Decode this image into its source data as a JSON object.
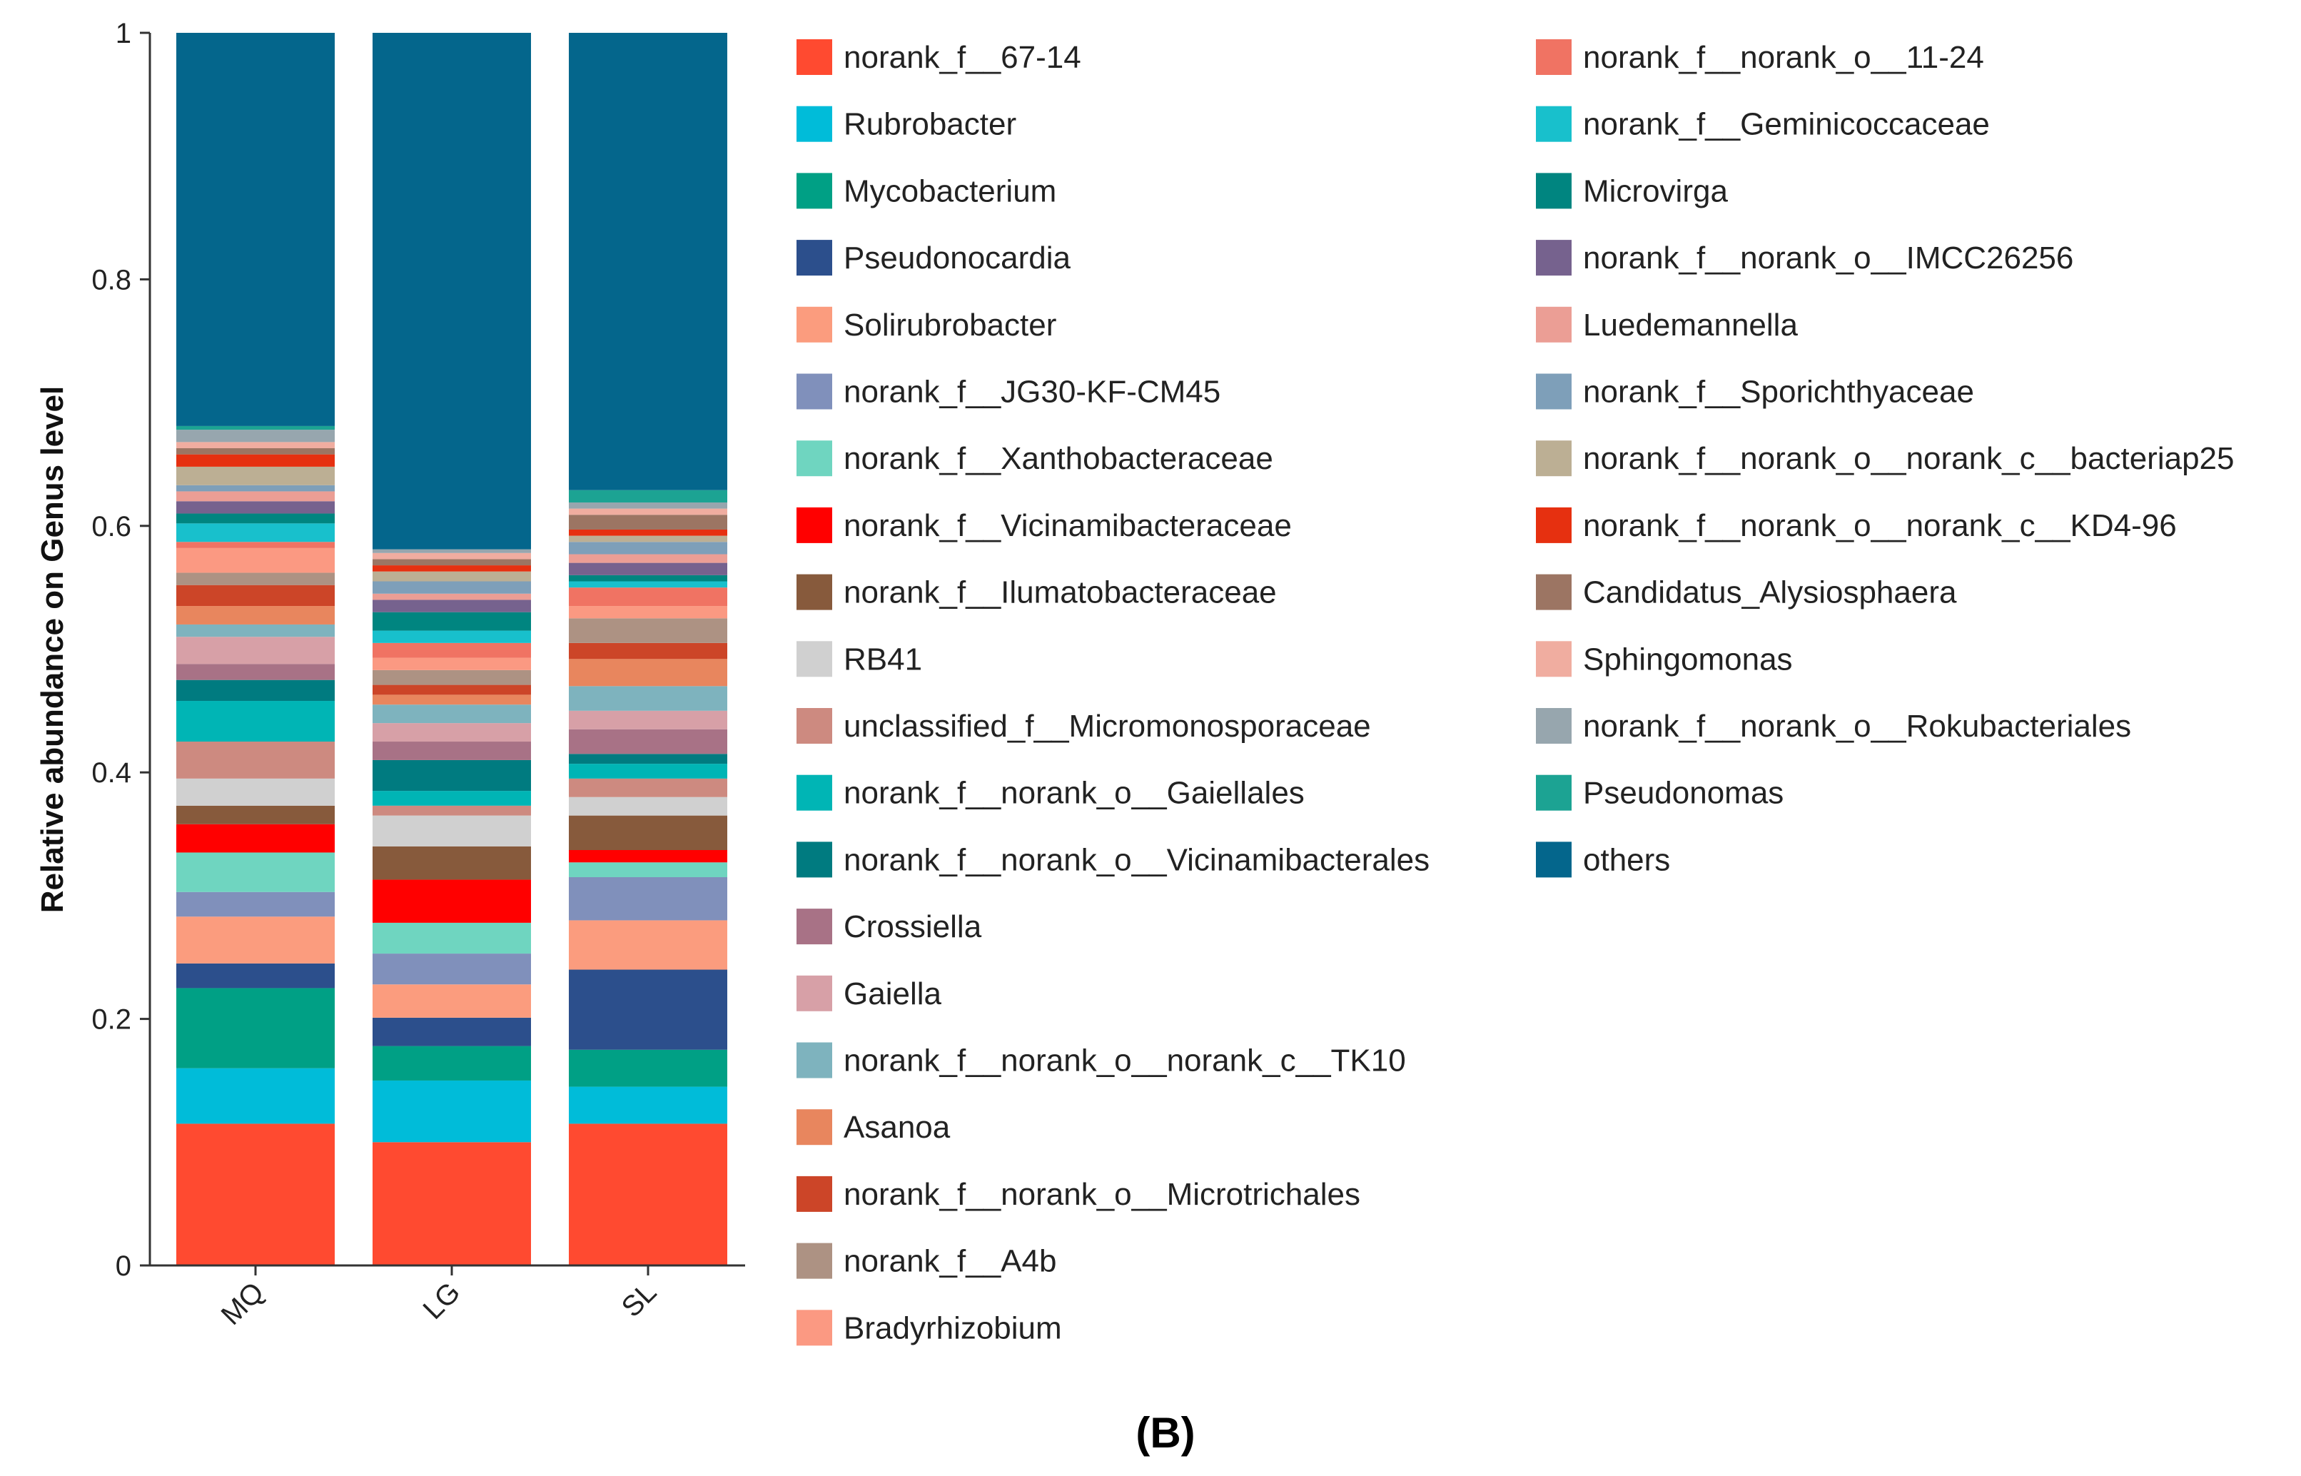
{
  "chart_data": {
    "type": "bar",
    "stacked": true,
    "panel_label": "(B)",
    "title": "",
    "xlabel": "",
    "ylabel": "Relative abundance on Genus level",
    "ylim": [
      0,
      1
    ],
    "yticks": [
      "0",
      "0.2",
      "0.4",
      "0.6",
      "0.8",
      "1"
    ],
    "categories": [
      "MQ",
      "LG",
      "SL"
    ],
    "series": [
      {
        "name": "norank_f__67-14",
        "color": "#FF4A30",
        "values": [
          0.115,
          0.1,
          0.115
        ]
      },
      {
        "name": "Rubrobacter",
        "color": "#00BCD9",
        "values": [
          0.045,
          0.05,
          0.03
        ]
      },
      {
        "name": "Mycobacterium",
        "color": "#00A085",
        "values": [
          0.065,
          0.028,
          0.03
        ]
      },
      {
        "name": "Pseudonocardia",
        "color": "#2C4F8C",
        "values": [
          0.02,
          0.023,
          0.065
        ]
      },
      {
        "name": "Solirubrobacter",
        "color": "#FB9C7E",
        "values": [
          0.038,
          0.027,
          0.04
        ]
      },
      {
        "name": "norank_f__JG30-KF-CM45",
        "color": "#8090BB",
        "values": [
          0.02,
          0.025,
          0.035
        ]
      },
      {
        "name": "norank_f__Xanthobacteraceae",
        "color": "#6FD5C0",
        "values": [
          0.032,
          0.025,
          0.012
        ]
      },
      {
        "name": "norank_f__Vicinamibacteraceae",
        "color": "#FF0000",
        "values": [
          0.023,
          0.035,
          0.01
        ]
      },
      {
        "name": "norank_f__Ilumatobacteraceae",
        "color": "#875A3C",
        "values": [
          0.015,
          0.027,
          0.028
        ]
      },
      {
        "name": "RB41",
        "color": "#D0D0D0",
        "values": [
          0.022,
          0.025,
          0.015
        ]
      },
      {
        "name": "unclassified_f__Micromonosporaceae",
        "color": "#CD8A80",
        "values": [
          0.03,
          0.008,
          0.015
        ]
      },
      {
        "name": "norank_f__norank_o__Gaiellales",
        "color": "#00B5B5",
        "values": [
          0.033,
          0.012,
          0.012
        ]
      },
      {
        "name": "norank_f__norank_o__Vicinamibacterales",
        "color": "#007B80",
        "values": [
          0.017,
          0.025,
          0.008
        ]
      },
      {
        "name": "Crossiella",
        "color": "#A87286",
        "values": [
          0.013,
          0.015,
          0.02
        ]
      },
      {
        "name": "Gaiella",
        "color": "#D7A0A7",
        "values": [
          0.022,
          0.015,
          0.015
        ]
      },
      {
        "name": "norank_f__norank_o__norank_c__TK10",
        "color": "#7EB3BE",
        "values": [
          0.01,
          0.015,
          0.02
        ]
      },
      {
        "name": "Asanoa",
        "color": "#E8865E",
        "values": [
          0.015,
          0.008,
          0.022
        ]
      },
      {
        "name": "norank_f__norank_o__Microtrichales",
        "color": "#CC4528",
        "values": [
          0.017,
          0.008,
          0.013
        ]
      },
      {
        "name": "norank_f__A4b",
        "color": "#AD9283",
        "values": [
          0.01,
          0.012,
          0.02
        ]
      },
      {
        "name": "Bradyrhizobium",
        "color": "#FB9982",
        "values": [
          0.02,
          0.01,
          0.01
        ]
      },
      {
        "name": "norank_f__norank_o__11-24",
        "color": "#F07363",
        "values": [
          0.005,
          0.012,
          0.015
        ]
      },
      {
        "name": "norank_f__Geminicoccaceae",
        "color": "#18C0CC",
        "values": [
          0.015,
          0.01,
          0.005
        ]
      },
      {
        "name": "Microvirga",
        "color": "#008580",
        "values": [
          0.008,
          0.015,
          0.005
        ]
      },
      {
        "name": "norank_f__norank_o__IMCC26256",
        "color": "#76628E",
        "values": [
          0.01,
          0.01,
          0.01
        ]
      },
      {
        "name": "Luedemannella",
        "color": "#EB9E95",
        "values": [
          0.008,
          0.005,
          0.007
        ]
      },
      {
        "name": "norank_f__Sporichthyaceae",
        "color": "#7E9FB9",
        "values": [
          0.005,
          0.01,
          0.01
        ]
      },
      {
        "name": "norank_f__norank_o__norank_c__bacteriap25",
        "color": "#BCAF94",
        "values": [
          0.015,
          0.008,
          0.005
        ]
      },
      {
        "name": "norank_f__norank_o__norank_c__KD4-96",
        "color": "#E63010",
        "values": [
          0.01,
          0.005,
          0.005
        ]
      },
      {
        "name": "Candidatus_Alysiosphaera",
        "color": "#9C7563",
        "values": [
          0.005,
          0.005,
          0.012
        ]
      },
      {
        "name": "Sphingomonas",
        "color": "#F0ADA0",
        "values": [
          0.005,
          0.005,
          0.005
        ]
      },
      {
        "name": "norank_f__norank_o__Rokubacteriales",
        "color": "#97A6AE",
        "values": [
          0.01,
          0.003,
          0.005
        ]
      },
      {
        "name": "Pseudonomas",
        "color": "#1CA393",
        "values": [
          0.003,
          0.0,
          0.01
        ]
      },
      {
        "name": "others",
        "color": "#04668C",
        "values": [
          0.296,
          0.4,
          0.362
        ]
      }
    ]
  }
}
